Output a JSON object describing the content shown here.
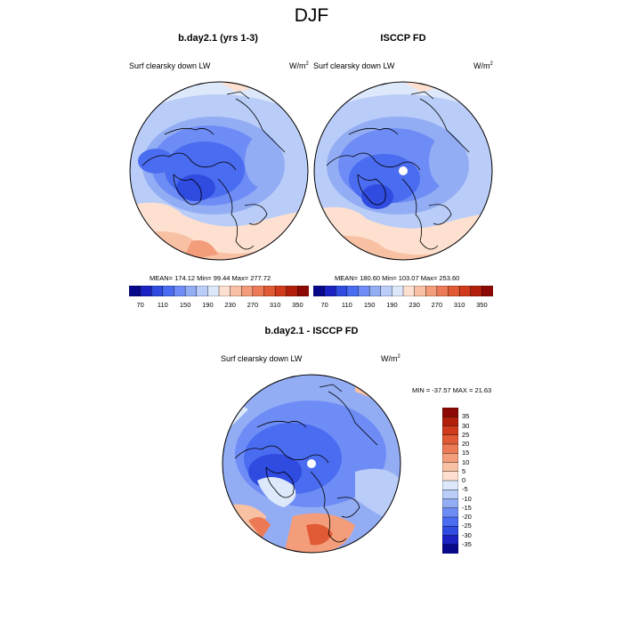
{
  "title": "DJF",
  "panels": [
    {
      "title": "b.day2.1 (yrs 1-3)",
      "variable": "Surf clearsky down LW",
      "units": "W/m",
      "units_sup": "2",
      "stats": "MEAN= 174.12  Min=  99.44  Max= 277.72"
    },
    {
      "title": "ISCCP FD",
      "variable": "Surf clearsky down LW",
      "units": "W/m",
      "units_sup": "2",
      "stats": "MEAN= 180.60  Min= 103.07  Max= 253.60"
    },
    {
      "title": "b.day2.1 - ISCCP FD",
      "variable": "Surf clearsky down LW",
      "units": "W/m",
      "units_sup": "2",
      "stats": "MIN = -37.57 MAX =  21.63"
    }
  ],
  "colorbar_top": {
    "labels": [
      "70",
      "110",
      "150",
      "190",
      "230",
      "270",
      "310",
      "350"
    ],
    "colors": [
      "#08088a",
      "#1a22c2",
      "#2f4be0",
      "#4a6cf0",
      "#6e8cf5",
      "#93adf5",
      "#b9cdf8",
      "#dde8fb",
      "#fde0cf",
      "#f9c1a4",
      "#f39d7b",
      "#ec7a56",
      "#e05a35",
      "#cf3b1c",
      "#b2200c",
      "#8b0a05"
    ]
  },
  "colorbar_diff": {
    "labels": [
      "35",
      "30",
      "25",
      "20",
      "15",
      "10",
      "5",
      "0",
      "-5",
      "-10",
      "-15",
      "-20",
      "-25",
      "-30",
      "-35"
    ],
    "colors": [
      "#8b0a05",
      "#b2200c",
      "#cf3b1c",
      "#e05a35",
      "#ec7a56",
      "#f39d7b",
      "#f9c1a4",
      "#fde0cf",
      "#dde8fb",
      "#b9cdf8",
      "#93adf5",
      "#6e8cf5",
      "#4a6cf0",
      "#2f4be0",
      "#1a22c2",
      "#08088a"
    ]
  }
}
